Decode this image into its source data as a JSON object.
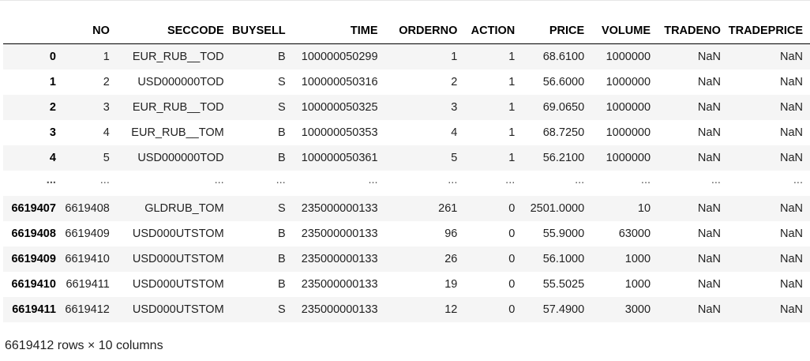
{
  "dataframe": {
    "columns": [
      "",
      "NO",
      "SECCODE",
      "BUYSELL",
      "TIME",
      "ORDERNO",
      "ACTION",
      "PRICE",
      "VOLUME",
      "TRADENO",
      "TRADEPRICE"
    ],
    "rows": [
      {
        "index": "0",
        "cells": [
          "1",
          "EUR_RUB__TOD",
          "B",
          "100000050299",
          "1",
          "1",
          "68.6100",
          "1000000",
          "NaN",
          "NaN"
        ]
      },
      {
        "index": "1",
        "cells": [
          "2",
          "USD000000TOD",
          "S",
          "100000050316",
          "2",
          "1",
          "56.6000",
          "1000000",
          "NaN",
          "NaN"
        ]
      },
      {
        "index": "2",
        "cells": [
          "3",
          "EUR_RUB__TOD",
          "S",
          "100000050325",
          "3",
          "1",
          "69.0650",
          "1000000",
          "NaN",
          "NaN"
        ]
      },
      {
        "index": "3",
        "cells": [
          "4",
          "EUR_RUB__TOM",
          "B",
          "100000050353",
          "4",
          "1",
          "68.7250",
          "1000000",
          "NaN",
          "NaN"
        ]
      },
      {
        "index": "4",
        "cells": [
          "5",
          "USD000000TOD",
          "B",
          "100000050361",
          "5",
          "1",
          "56.2100",
          "1000000",
          "NaN",
          "NaN"
        ]
      },
      {
        "index": "...",
        "cells": [
          "...",
          "...",
          "...",
          "...",
          "...",
          "...",
          "...",
          "...",
          "...",
          "..."
        ]
      },
      {
        "index": "6619407",
        "cells": [
          "6619408",
          "GLDRUB_TOM",
          "S",
          "235000000133",
          "261",
          "0",
          "2501.0000",
          "10",
          "NaN",
          "NaN"
        ]
      },
      {
        "index": "6619408",
        "cells": [
          "6619409",
          "USD000UTSTOM",
          "B",
          "235000000133",
          "96",
          "0",
          "55.9000",
          "63000",
          "NaN",
          "NaN"
        ]
      },
      {
        "index": "6619409",
        "cells": [
          "6619410",
          "USD000UTSTOM",
          "B",
          "235000000133",
          "26",
          "0",
          "56.1000",
          "1000",
          "NaN",
          "NaN"
        ]
      },
      {
        "index": "6619410",
        "cells": [
          "6619411",
          "USD000UTSTOM",
          "B",
          "235000000133",
          "19",
          "0",
          "55.5025",
          "1000",
          "NaN",
          "NaN"
        ]
      },
      {
        "index": "6619411",
        "cells": [
          "6619412",
          "USD000UTSTOM",
          "S",
          "235000000133",
          "12",
          "0",
          "57.4900",
          "3000",
          "NaN",
          "NaN"
        ]
      }
    ],
    "shape_label": "6619412 rows × 10 columns"
  }
}
